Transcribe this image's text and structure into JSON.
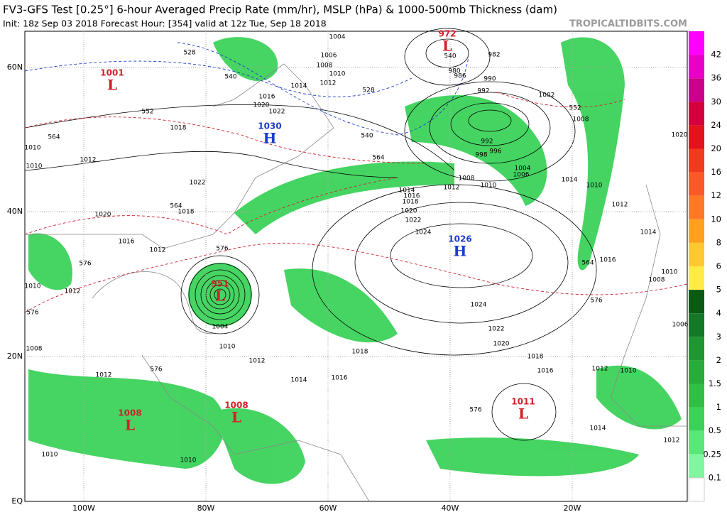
{
  "header": {
    "title": "FV3-GFS Test [0.25°] 6-hour Averaged Precip Rate (mm/hr), MSLP (hPa) & 1000-500mb Thickness (dam)",
    "subtitle": "Init: 18z Sep 03 2018   Forecast Hour: [354]   valid at 12z Tue, Sep 18 2018",
    "site": "TROPICALTIDBITS.COM"
  },
  "axes": {
    "latitudes": [
      "60N",
      "40N",
      "20N",
      "EQ"
    ],
    "longitudes": [
      "100W",
      "80W",
      "60W",
      "40W",
      "20W"
    ]
  },
  "colorbar": [
    {
      "label": "42",
      "color": "#ff00ff"
    },
    {
      "label": "36",
      "color": "#e600c8"
    },
    {
      "label": "30",
      "color": "#c8008c"
    },
    {
      "label": "24",
      "color": "#d2003c"
    },
    {
      "label": "20",
      "color": "#e1141e"
    },
    {
      "label": "16",
      "color": "#f03c1e"
    },
    {
      "label": "12",
      "color": "#fa5a28"
    },
    {
      "label": "10",
      "color": "#ff7828"
    },
    {
      "label": "8",
      "color": "#ffa01e"
    },
    {
      "label": "6",
      "color": "#ffc832"
    },
    {
      "label": "5",
      "color": "#ffeb46"
    },
    {
      "label": "4",
      "color": "#0a5a14"
    },
    {
      "label": "3",
      "color": "#147828"
    },
    {
      "label": "2",
      "color": "#1e9632"
    },
    {
      "label": "1.5",
      "color": "#28aa3c"
    },
    {
      "label": "1",
      "color": "#32be46"
    },
    {
      "label": "0.5",
      "color": "#3cd25a"
    },
    {
      "label": "0.25",
      "color": "#5ae678"
    },
    {
      "label": "0.1",
      "color": "#82f5a0"
    }
  ],
  "centers": [
    {
      "value": "1001",
      "letter": "L",
      "color": "#d0202a"
    },
    {
      "value": "1030",
      "letter": "H",
      "color": "#1a3ec8"
    },
    {
      "value": "972",
      "letter": "L",
      "color": "#d0202a"
    },
    {
      "value": "1026",
      "letter": "H",
      "color": "#1a3ec8"
    },
    {
      "value": "951",
      "letter": "L",
      "color": "#d0202a"
    },
    {
      "value": "1008",
      "letter": "L",
      "color": "#d0202a"
    },
    {
      "value": "1008",
      "letter": "L",
      "color": "#d0202a"
    },
    {
      "value": "1011",
      "letter": "L",
      "color": "#d0202a"
    }
  ],
  "isobar_labels": [
    "1004",
    "1006",
    "1008",
    "1010",
    "1012",
    "1014",
    "1016",
    "1020",
    "1022",
    "1018",
    "1010",
    "1012",
    "1010",
    "1022",
    "1018",
    "1020",
    "1016",
    "1012",
    "1010",
    "1012",
    "1008",
    "1012",
    "1010",
    "1010",
    "1014",
    "1016",
    "1018",
    "1024",
    "1022",
    "1020",
    "1018",
    "1016",
    "1024",
    "1022",
    "1020",
    "1018",
    "1016",
    "1014",
    "1012",
    "1010",
    "1008",
    "1004",
    "1006",
    "998",
    "996",
    "992",
    "990",
    "992",
    "982",
    "986",
    "980",
    "1002",
    "1008",
    "1014",
    "1010",
    "1012",
    "1014",
    "1016",
    "1010",
    "1008",
    "1006",
    "1020",
    "1014",
    "1012",
    "1012",
    "1010",
    "1010",
    "1012",
    "1004"
  ],
  "thickness_labels": [
    {
      "text": "552",
      "color": "#d0202a"
    },
    {
      "text": "564",
      "color": "#d0202a"
    },
    {
      "text": "564",
      "color": "#d0202a"
    },
    {
      "text": "576",
      "color": "#d0202a"
    },
    {
      "text": "576",
      "color": "#d0202a"
    },
    {
      "text": "576",
      "color": "#d0202a"
    },
    {
      "text": "576",
      "color": "#d0202a"
    },
    {
      "text": "576",
      "color": "#d0202a"
    },
    {
      "text": "576",
      "color": "#d0202a"
    },
    {
      "text": "552",
      "color": "#d0202a"
    },
    {
      "text": "564",
      "color": "#d0202a"
    },
    {
      "text": "540",
      "color": "#1a3ec8"
    },
    {
      "text": "528",
      "color": "#1a3ec8"
    },
    {
      "text": "540",
      "color": "#1a3ec8"
    },
    {
      "text": "528",
      "color": "#1a3ec8"
    },
    {
      "text": "540",
      "color": "#1a3ec8"
    },
    {
      "text": "564",
      "color": "#d0202a"
    }
  ]
}
